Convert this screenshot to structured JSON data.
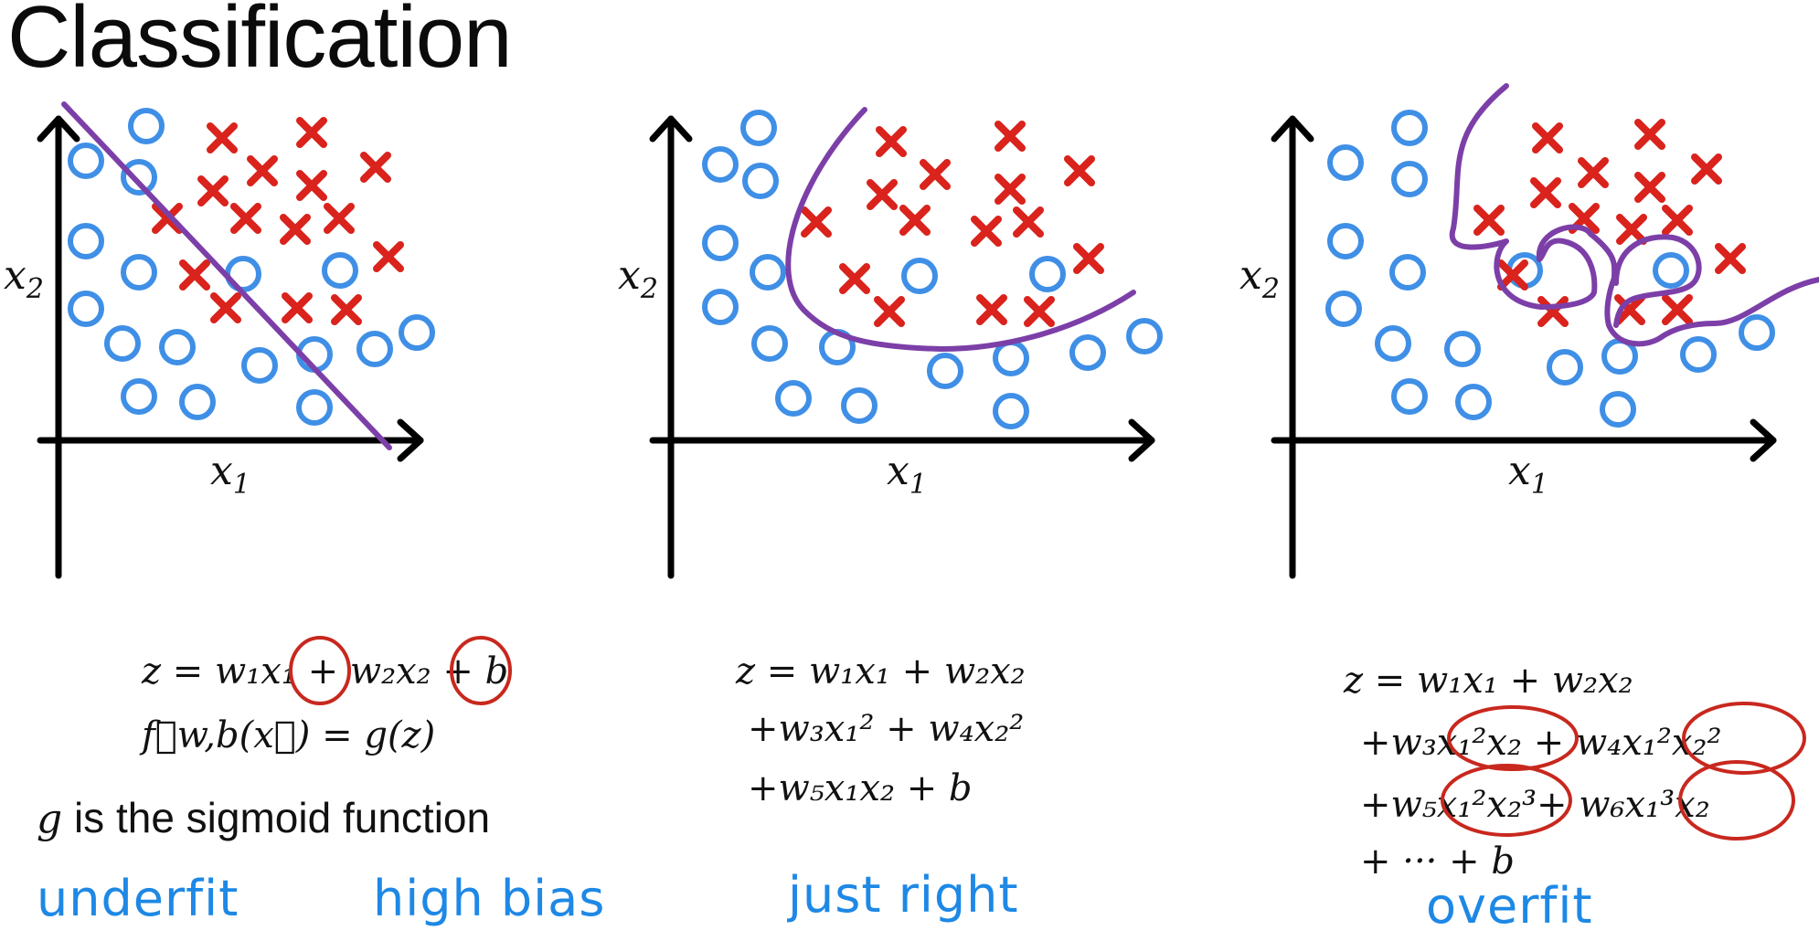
{
  "title": "Classification",
  "panels": [
    {
      "xlabel": "x",
      "xsub": "1",
      "ylabel": "x",
      "ysub": "2",
      "caption": "underfit",
      "caption2": "high bias"
    },
    {
      "xlabel": "x",
      "xsub": "1",
      "ylabel": "x",
      "ysub": "2",
      "caption": "just right"
    },
    {
      "xlabel": "x",
      "xsub": "1",
      "ylabel": "x",
      "ysub": "2",
      "caption": "overfit"
    }
  ],
  "equations": {
    "underfit": {
      "line1": "z = w₁x₁ + w₂x₂ + b",
      "line2": "f⃗w,b(x⃗) = g(z)",
      "line3_var": "g",
      "line3": " is the sigmoid function"
    },
    "just_right": {
      "line1": "z = w₁x₁ + w₂x₂",
      "line2": "+w₃x₁² + w₄x₂²",
      "line3": "+w₅x₁x₂ + b"
    },
    "overfit": {
      "line1": "z = w₁x₁ + w₂x₂",
      "line2": "+w₃x₁²x₂ + w₄x₁²x₂²",
      "line3": "+w₅x₁²x₂³+  w₆x₁³x₂",
      "line4": "+ ··· + b"
    }
  },
  "colors": {
    "circle": "#3f8fe6",
    "cross": "#d9231c",
    "boundary": "#7c3fa8",
    "caption": "#1e88e5"
  },
  "icons": [
    "circle-marker",
    "cross-marker",
    "arrow-axis"
  ]
}
